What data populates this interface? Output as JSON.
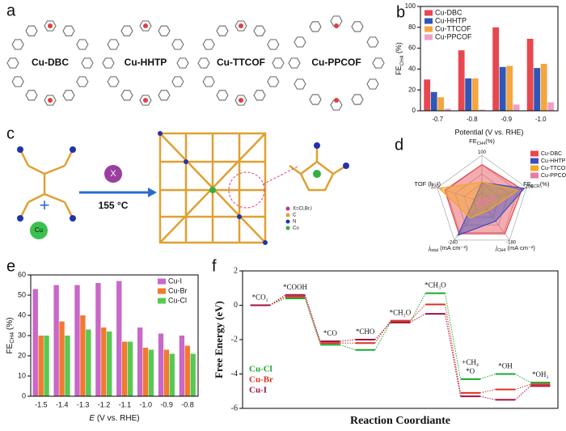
{
  "panels": [
    "a",
    "b",
    "c",
    "d",
    "e",
    "f"
  ],
  "structures": [
    "Cu-DBC",
    "Cu-HHTP",
    "Cu-TTCOF",
    "Cu-PPCOF"
  ],
  "scheme": {
    "reagent": "X",
    "temperature": "155 °C",
    "metal": "Cu",
    "key": [
      "X=Cl,Br,I",
      "C",
      "N",
      "Cu"
    ]
  },
  "chart_data": [
    {
      "type": "bar",
      "categories": [
        "-0.7",
        "-0.8",
        "-0.9",
        "-1.0"
      ],
      "series": [
        {
          "name": "Cu-DBC",
          "color": "#e8474f",
          "values": [
            30,
            58,
            80,
            69
          ]
        },
        {
          "name": "Cu-HHTP",
          "color": "#2f57b8",
          "values": [
            18,
            31,
            42,
            41
          ]
        },
        {
          "name": "Cu-TTCOF",
          "color": "#f5a640",
          "values": [
            13,
            31,
            43,
            45
          ]
        },
        {
          "name": "Cu-PPCOF",
          "color": "#f0a0c8",
          "values": [
            2,
            1,
            6,
            8
          ]
        }
      ],
      "ylim": [
        0,
        100
      ],
      "yticks": [
        0,
        20,
        40,
        60,
        80,
        100
      ],
      "x_label": "Potential (V vs. RHE)",
      "y_label": {
        "main": "FE",
        "sub": "CH4",
        "unit": " (%)"
      },
      "legend": "top-left"
    },
    {
      "type": "radar",
      "axes": [
        {
          "label": {
            "main": "FE",
            "sub": "CH4",
            "unit": "(%)"
          },
          "max": 100
        },
        {
          "label": {
            "main": "FE",
            "sub": "ECR",
            "unit": "(%)"
          },
          "max": 100
        },
        {
          "label": {
            "italic": "j",
            "sub": "CH4",
            "unit": " (mA cm⁻²)"
          },
          "max": -180
        },
        {
          "label": {
            "italic": "j",
            "sub": "total",
            "unit": " (mA cm⁻²)"
          },
          "max": -240
        },
        {
          "label": {
            "main": "TOF (h⁻¹)"
          },
          "max": 120
        }
      ],
      "series": [
        {
          "name": "Cu-DBC",
          "color": "#e8474f",
          "values": [
            80,
            90,
            -150,
            -200,
            100
          ]
        },
        {
          "name": "Cu-HHTP",
          "color": "#3b4fbf",
          "values": [
            42,
            95,
            -90,
            -210,
            20
          ]
        },
        {
          "name": "Cu-TTCOF",
          "color": "#f5a623",
          "values": [
            43,
            80,
            -40,
            -100,
            115
          ]
        },
        {
          "name": "Cu-PPCOF",
          "color": "#e87aa6",
          "values": [
            6,
            30,
            -10,
            -30,
            10
          ]
        }
      ],
      "grid": true,
      "legend": "top-right"
    },
    {
      "type": "bar",
      "categories": [
        "-1.5",
        "-1.4",
        "-1.3",
        "-1.2",
        "-1.1",
        "-1.0",
        "-0.9",
        "-0.8"
      ],
      "series": [
        {
          "name": "Cu-I",
          "color": "#c868c8",
          "values": [
            53,
            55,
            55,
            56,
            57,
            34,
            31,
            30
          ]
        },
        {
          "name": "Cu-Br",
          "color": "#f07a30",
          "values": [
            30,
            37,
            40,
            34,
            27,
            24,
            23,
            25
          ]
        },
        {
          "name": "Cu-Cl",
          "color": "#58c850",
          "values": [
            30,
            30,
            33,
            32,
            27,
            23,
            21,
            21
          ]
        }
      ],
      "ylim": [
        0,
        60
      ],
      "yticks": [
        0,
        10,
        20,
        30,
        40,
        50,
        60
      ],
      "x_label": {
        "italic": "E",
        "unit": " (V vs. RHE)"
      },
      "y_label": {
        "main": "FE",
        "sub": "CH4",
        "unit": " (%)"
      },
      "legend": "top-right"
    },
    {
      "type": "energy",
      "categories": [
        "*CO₂",
        "*COOH",
        "*CO",
        "*CHO",
        "*CH₂O",
        "*CH₃O",
        "*O",
        "*OH",
        "*OH₂"
      ],
      "annotations": [
        "+CH₄"
      ],
      "series": [
        {
          "name": "Cu-Cl",
          "color": "#1aa830",
          "values": [
            0,
            0.4,
            -2.3,
            -2.6,
            -1.0,
            0.7,
            -4.3,
            -4.0,
            -4.5
          ]
        },
        {
          "name": "Cu-Br",
          "color": "#e03020",
          "values": [
            0,
            0.5,
            -2.2,
            -2.2,
            -0.9,
            0.05,
            -5.1,
            -4.9,
            -4.6
          ]
        },
        {
          "name": "Cu-I",
          "color": "#a01040",
          "values": [
            0,
            0.6,
            -2.1,
            -2.0,
            -1.0,
            -0.5,
            -5.3,
            -5.5,
            -4.7
          ]
        }
      ],
      "ylim": [
        -6,
        2
      ],
      "yticks": [
        -6,
        -4,
        -2,
        0,
        2
      ],
      "x_label": "Reaction Coordiante",
      "y_label": "Free Energy (eV)",
      "legend": "bottom-left"
    }
  ]
}
